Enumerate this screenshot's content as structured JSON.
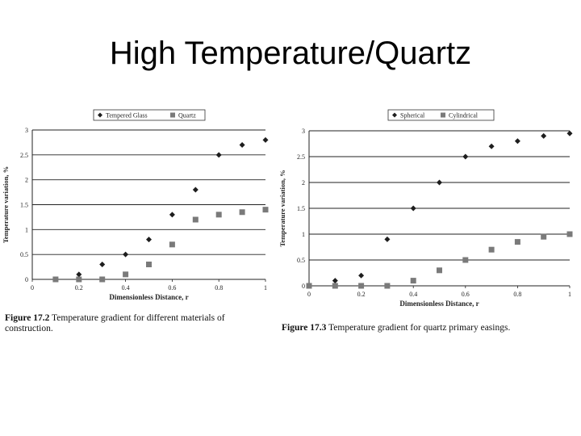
{
  "slide": {
    "title": "High Temperature/Quartz"
  },
  "chart_data": [
    {
      "type": "scatter",
      "xlabel": "Dimensionless Distance, r",
      "ylabel": "Temperature variation, %",
      "xlim": [
        0,
        1
      ],
      "ylim": [
        0,
        3
      ],
      "x_ticks": [
        "0",
        "0.2",
        "0.4",
        "0.6",
        "0.8",
        "1"
      ],
      "y_ticks": [
        "0",
        "0.5",
        "1",
        "1.5",
        "2",
        "2.5",
        "3"
      ],
      "grid": "horizontal",
      "legend_position": "top",
      "series": [
        {
          "name": "Tempered Glass",
          "marker": "diamond",
          "points": [
            [
              0.1,
              0.0
            ],
            [
              0.2,
              0.1
            ],
            [
              0.3,
              0.3
            ],
            [
              0.4,
              0.5
            ],
            [
              0.5,
              0.8
            ],
            [
              0.6,
              1.3
            ],
            [
              0.7,
              1.8
            ],
            [
              0.8,
              2.5
            ],
            [
              0.9,
              2.7
            ],
            [
              1.0,
              2.8
            ]
          ]
        },
        {
          "name": "Quartz",
          "marker": "square",
          "points": [
            [
              0.1,
              0.0
            ],
            [
              0.2,
              0.0
            ],
            [
              0.3,
              0.0
            ],
            [
              0.4,
              0.1
            ],
            [
              0.5,
              0.3
            ],
            [
              0.6,
              0.7
            ],
            [
              0.7,
              1.2
            ],
            [
              0.8,
              1.3
            ],
            [
              0.9,
              1.35
            ],
            [
              1.0,
              1.4
            ]
          ]
        }
      ],
      "caption_label": "Figure 17.2",
      "caption_text": "Temperature gradient for different materials of construction."
    },
    {
      "type": "scatter",
      "xlabel": "Dimensionless Distance, r",
      "ylabel": "Temperature variation, %",
      "xlim": [
        0,
        1
      ],
      "ylim": [
        0,
        3
      ],
      "x_ticks": [
        "0",
        "0.2",
        "0.4",
        "0.6",
        "0.8",
        "1"
      ],
      "y_ticks": [
        "0",
        "0.5",
        "1",
        "1.5",
        "2",
        "2.5",
        "3"
      ],
      "grid": "horizontal",
      "legend_position": "top",
      "series": [
        {
          "name": "Spherical",
          "marker": "diamond",
          "points": [
            [
              0.0,
              0.0
            ],
            [
              0.1,
              0.1
            ],
            [
              0.2,
              0.2
            ],
            [
              0.3,
              0.9
            ],
            [
              0.4,
              1.5
            ],
            [
              0.5,
              2.0
            ],
            [
              0.6,
              2.5
            ],
            [
              0.7,
              2.7
            ],
            [
              0.8,
              2.8
            ],
            [
              0.9,
              2.9
            ],
            [
              1.0,
              2.95
            ]
          ]
        },
        {
          "name": "Cylindrical",
          "marker": "square",
          "points": [
            [
              0.0,
              0.0
            ],
            [
              0.1,
              0.0
            ],
            [
              0.2,
              0.0
            ],
            [
              0.3,
              0.0
            ],
            [
              0.4,
              0.1
            ],
            [
              0.5,
              0.3
            ],
            [
              0.6,
              0.5
            ],
            [
              0.7,
              0.7
            ],
            [
              0.8,
              0.85
            ],
            [
              0.9,
              0.95
            ],
            [
              1.0,
              1.0
            ]
          ]
        }
      ],
      "caption_label": "Figure 17.3",
      "caption_text": "Temperature gradient for quartz primary easings."
    }
  ],
  "colors": {
    "diamond_marker": "#1e1e1e",
    "square_marker": "#7a7a7a",
    "grid": "#222222",
    "background": "#ffffff"
  }
}
